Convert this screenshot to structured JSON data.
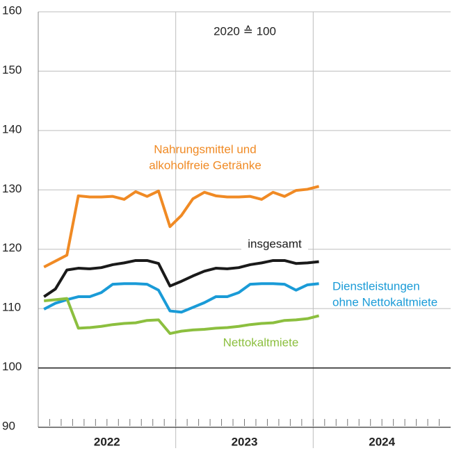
{
  "chart_data": {
    "type": "line",
    "subtitle": "2020 ≙ 100",
    "x": [
      0.5,
      1.5,
      2.5,
      3.5,
      4.5,
      5.5,
      6.5,
      7.5,
      8.5,
      9.5,
      10.5,
      11.5,
      12.5,
      13.5,
      14.5,
      15.5,
      16.5,
      17.5,
      18.5,
      19.5,
      20.5,
      21.5,
      22.5,
      23.5,
      24.5
    ],
    "xlim": [
      0,
      36
    ],
    "xticks": [
      {
        "value": 6,
        "label": "2022"
      },
      {
        "value": 18,
        "label": "2023"
      },
      {
        "value": 30,
        "label": "2024"
      }
    ],
    "xgrid": [
      12,
      24
    ],
    "minor_xticks": [
      1,
      2,
      3,
      4,
      5,
      6,
      7,
      8,
      9,
      10,
      11,
      12,
      13,
      14,
      15,
      16,
      17,
      18,
      19,
      20,
      21,
      22,
      23,
      24,
      25,
      26,
      27,
      28,
      29,
      30,
      31,
      32,
      33,
      34,
      35
    ],
    "ylim": [
      90,
      160
    ],
    "yticks": [
      90,
      100,
      110,
      120,
      130,
      140,
      150,
      160
    ],
    "reference_line": 100,
    "grid": true,
    "series": [
      {
        "name": [
          "Nahrungsmittel und",
          "alkoholfreie Getränke"
        ],
        "color": "#f08a24",
        "values": [
          117,
          118,
          119,
          129,
          128.8,
          128.8,
          128.9,
          128.4,
          129.7,
          128.9,
          129.8,
          123.8,
          125.7,
          128.5,
          129.6,
          129.0,
          128.8,
          128.8,
          128.9,
          128.4,
          129.6,
          128.9,
          129.9,
          130.1,
          130.6
        ]
      },
      {
        "name": [
          "insgesamt"
        ],
        "color": "#1a1a1a",
        "values": [
          112,
          113.3,
          116.5,
          116.8,
          116.7,
          116.9,
          117.4,
          117.7,
          118.1,
          118.1,
          117.6,
          113.8,
          114.6,
          115.5,
          116.3,
          116.8,
          116.7,
          116.9,
          117.4,
          117.7,
          118.1,
          118.1,
          117.6,
          117.7,
          117.9
        ]
      },
      {
        "name": [
          "Dienstleistungen",
          "ohne Nettokaltmiete"
        ],
        "color": "#1a9bd7",
        "values": [
          109.9,
          110.9,
          111.5,
          112.0,
          112.0,
          112.7,
          114.1,
          114.2,
          114.2,
          114.1,
          113.1,
          109.6,
          109.4,
          110.2,
          111.0,
          112.0,
          112.0,
          112.7,
          114.1,
          114.2,
          114.2,
          114.1,
          113.1,
          114.0,
          114.2
        ]
      },
      {
        "name": [
          "Nettokaltmiete"
        ],
        "color": "#8cbf3f",
        "values": [
          111.3,
          111.5,
          111.7,
          106.7,
          106.8,
          107.0,
          107.3,
          107.5,
          107.6,
          108.0,
          108.1,
          105.8,
          106.2,
          106.4,
          106.5,
          106.7,
          106.8,
          107.0,
          107.3,
          107.5,
          107.6,
          108.0,
          108.1,
          108.3,
          108.8
        ]
      }
    ]
  }
}
